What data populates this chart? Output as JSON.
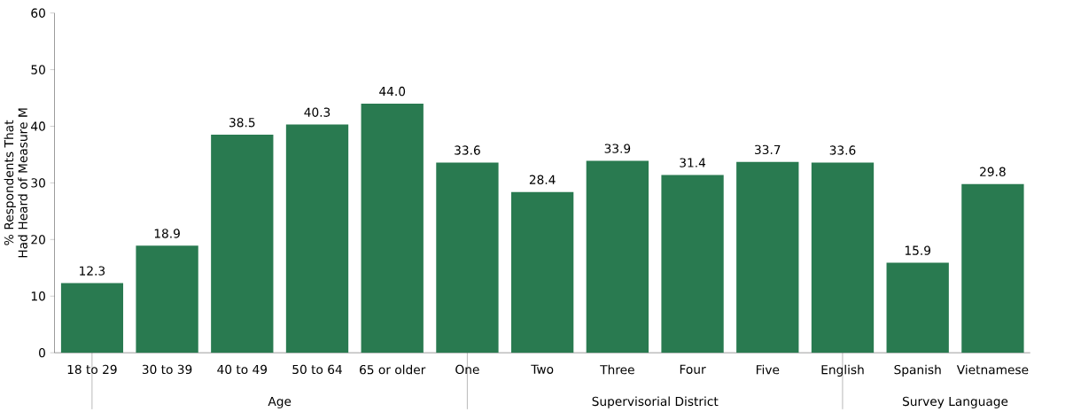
{
  "chart_data": {
    "type": "bar",
    "ylabel": "% Respondents That Had Heard of Measure M",
    "categories": [
      "18 to 29",
      "30 to 39",
      "40 to 49",
      "50 to 64",
      "65 or older",
      "One",
      "Two",
      "Three",
      "Four",
      "Five",
      "English",
      "Spanish",
      "Vietnamese"
    ],
    "values": [
      12.3,
      18.9,
      38.5,
      40.3,
      44.0,
      33.6,
      28.4,
      33.9,
      31.4,
      33.7,
      33.6,
      15.9,
      29.8
    ],
    "color": "#297a50",
    "ylim": [
      0,
      60
    ],
    "yticks": [
      0,
      10,
      20,
      30,
      40,
      50,
      60
    ],
    "value_labels": [
      "12.3",
      "18.9",
      "38.5",
      "40.3",
      "44.0",
      "33.6",
      "28.4",
      "33.9",
      "31.4",
      "33.7",
      "33.6",
      "15.9",
      "29.8"
    ],
    "annotations": [
      "Age",
      "Supervisorial District",
      "Survey Language"
    ]
  }
}
